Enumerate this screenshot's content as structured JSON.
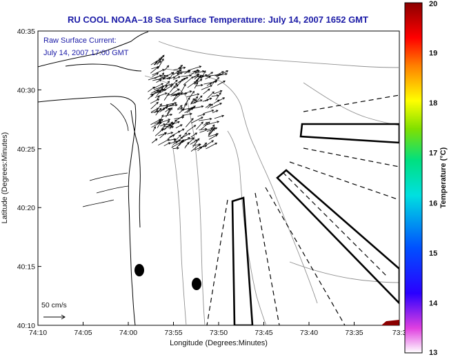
{
  "chart_data": {
    "type": "map",
    "title": "RU COOL   NOAA–18  Sea Surface Temperature:  July 14, 2007 1652 GMT",
    "annotation": {
      "line1": "Raw Surface Current:",
      "line2": "July 14, 2007 17:00 GMT"
    },
    "scale_label": "50 cm/s",
    "xlabel": "Longitude (Degrees:Minutes)",
    "ylabel": "Latitude (Degrees:Minutes)",
    "x_ticks": [
      "74:10",
      "74:05",
      "74:00",
      "73:55",
      "73:50",
      "73:45",
      "73:40",
      "73:35",
      "73:3"
    ],
    "y_ticks": [
      "40:35",
      "40:30",
      "40:25",
      "40:20",
      "40:15",
      "40:10"
    ],
    "colorbar": {
      "label": "Temperature (°C)",
      "ticks": [
        "20",
        "19",
        "18",
        "17",
        "16",
        "15",
        "14",
        "13"
      ],
      "range": [
        13,
        20
      ]
    },
    "colors": {
      "title": "#1a1aa6",
      "land_outline": "#000000",
      "bathymetry": "#909090",
      "warm_sst": "#8b0000"
    }
  }
}
